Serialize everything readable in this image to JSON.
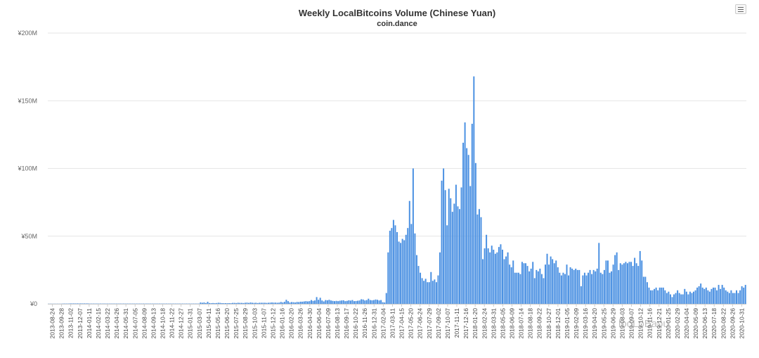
{
  "title": "Weekly LocalBitcoins Volume (Chinese Yuan)",
  "subtitle": "coin.dance",
  "watermark": "looLoBaou",
  "colors": {
    "bar": "#4a90e2",
    "grid": "#e6e6e6",
    "axis": "#cccccc"
  },
  "menu": {
    "icon": "hamburger-icon"
  },
  "chart_data": {
    "type": "bar",
    "xlabel": "",
    "ylabel": "",
    "ylim": [
      0,
      200
    ],
    "y_unit": "M CNY",
    "y_ticks": [
      0,
      50,
      100,
      150,
      200
    ],
    "y_tick_labels": [
      "¥0",
      "¥50M",
      "¥100M",
      "¥150M",
      "¥200M"
    ],
    "grid": true,
    "x_tick_labels": [
      "2013-08-24",
      "2013-09-28",
      "2013-11-02",
      "2013-12-07",
      "2014-01-11",
      "2014-02-15",
      "2014-03-22",
      "2014-04-26",
      "2014-05-31",
      "2014-07-05",
      "2014-08-09",
      "2014-09-13",
      "2014-10-18",
      "2014-11-22",
      "2014-12-27",
      "2015-01-31",
      "2015-03-07",
      "2015-04-11",
      "2015-05-16",
      "2015-06-20",
      "2015-07-25",
      "2015-08-29",
      "2015-10-03",
      "2015-11-07",
      "2015-12-12",
      "2016-01-16",
      "2016-02-20",
      "2016-03-26",
      "2016-04-30",
      "2016-06-04",
      "2016-07-09",
      "2016-08-13",
      "2016-09-17",
      "2016-10-22",
      "2016-11-26",
      "2016-12-31",
      "2017-02-04",
      "2017-03-11",
      "2017-04-15",
      "2017-05-20",
      "2017-06-24",
      "2017-07-29",
      "2017-09-02",
      "2017-10-07",
      "2017-11-11",
      "2017-12-16",
      "2018-01-20",
      "2018-02-24",
      "2018-03-31",
      "2018-05-05",
      "2018-06-09",
      "2018-07-14",
      "2018-08-18",
      "2018-09-22",
      "2018-10-27",
      "2018-12-01",
      "2019-01-05",
      "2019-02-09",
      "2019-03-16",
      "2019-04-20",
      "2019-05-25",
      "2019-06-29",
      "2019-08-03",
      "2019-09-07",
      "2019-10-12",
      "2019-11-16",
      "2019-12-21",
      "2020-01-25",
      "2020-02-29",
      "2020-04-04",
      "2020-05-09",
      "2020-06-13",
      "2020-07-18",
      "2020-08-22",
      "2020-09-26",
      "2020-10-31"
    ],
    "series": [
      {
        "values": [
          0.1,
          0.1,
          0.1,
          0.1,
          0.1,
          0.1,
          0.1,
          0.1,
          0.2,
          0.2,
          0.2,
          0.2,
          0.3,
          0.3,
          0.3,
          0.3,
          0.3,
          0.3,
          0.3,
          0.3,
          0.3,
          0.3,
          0.3,
          0.2,
          0.2,
          0.2,
          0.2,
          0.2,
          0.2,
          0.2,
          0.2,
          0.2,
          0.2,
          0.2,
          0.2,
          0.2,
          0.2,
          0.2,
          0.2,
          0.2,
          0.2,
          0.2,
          0.2,
          0.2,
          0.2,
          0.2,
          0.2,
          0.2,
          0.2,
          0.2,
          0.2,
          0.2,
          0.2,
          0.2,
          0.2,
          0.2,
          0.2,
          0.2,
          0.2,
          0.2,
          0.2,
          0.2,
          0.2,
          0.2,
          0.2,
          0.2,
          0.2,
          0.2,
          0.2,
          0.2,
          0.2,
          0.2,
          0.2,
          0.2,
          0.2,
          0.2,
          0.2,
          0.2,
          0.2,
          0.2,
          0.2,
          0.2,
          0.2,
          0.2,
          0.2,
          1.0,
          0.8,
          1.0,
          0.6,
          1.5,
          0.6,
          0.5,
          0.6,
          0.5,
          0.6,
          0.8,
          0.7,
          0.5,
          0.5,
          0.5,
          0.5,
          0.5,
          0.5,
          0.7,
          0.7,
          0.6,
          0.8,
          0.7,
          0.7,
          0.6,
          0.8,
          0.9,
          0.7,
          1.0,
          0.8,
          0.7,
          0.8,
          0.6,
          0.8,
          0.8,
          0.8,
          0.8,
          0.7,
          0.8,
          0.9,
          1.0,
          0.9,
          0.9,
          0.8,
          0.9,
          1.4,
          1.0,
          1.5,
          3.0,
          2.0,
          1.0,
          1.3,
          1.2,
          1.0,
          1.4,
          1.3,
          1.6,
          1.6,
          1.8,
          2.0,
          1.8,
          2.0,
          2.8,
          2.2,
          2.5,
          5.0,
          3.0,
          4.5,
          2.5,
          1.8,
          2.8,
          2.6,
          3.0,
          2.5,
          2.2,
          2.0,
          2.2,
          2.0,
          2.3,
          2.5,
          2.6,
          2.0,
          2.2,
          2.6,
          2.4,
          2.8,
          2.0,
          2.1,
          2.3,
          2.5,
          3.4,
          3.2,
          2.5,
          2.8,
          3.8,
          2.8,
          2.6,
          2.8,
          3.2,
          3.0,
          2.5,
          2.8,
          1.2,
          1.0,
          8.0,
          38.0,
          54.0,
          56.0,
          62.0,
          58.0,
          53.0,
          46.0,
          45.0,
          48.0,
          47.0,
          51.0,
          56.0,
          76.0,
          59.0,
          100.0,
          52.0,
          36.0,
          28.0,
          23.0,
          19.0,
          17.0,
          18.5,
          16.0,
          16.0,
          23.5,
          17.0,
          18.0,
          16.0,
          21.0,
          38.0,
          91.0,
          100.0,
          84.0,
          58.0,
          85.0,
          78.0,
          68.0,
          74.0,
          88.0,
          72.0,
          70.0,
          86.0,
          119.0,
          134.0,
          115.0,
          110.0,
          87.0,
          133.0,
          168.0,
          104.0,
          66.0,
          70.0,
          64.0,
          33.0,
          41.0,
          51.0,
          41.0,
          38.0,
          43.0,
          40.0,
          37.0,
          38.0,
          42.0,
          44.0,
          40.0,
          33.0,
          35.0,
          38.0,
          29.0,
          27.0,
          32.0,
          23.0,
          23.0,
          23.0,
          22.0,
          31.0,
          30.0,
          30.0,
          28.0,
          24.0,
          26.0,
          31.0,
          19.0,
          25.0,
          24.0,
          26.0,
          22.0,
          19.0,
          29.0,
          37.0,
          29.0,
          35.0,
          33.0,
          30.0,
          32.0,
          27.0,
          23.0,
          21.0,
          23.0,
          22.0,
          29.0,
          21.0,
          27.0,
          26.0,
          25.0,
          26.0,
          25.0,
          25.0,
          13.0,
          21.0,
          23.0,
          21.0,
          23.0,
          25.0,
          22.0,
          25.0,
          24.0,
          26.0,
          45.0,
          23.0,
          22.0,
          25.0,
          32.0,
          32.0,
          23.0,
          24.0,
          29.0,
          36.0,
          38.0,
          25.0,
          30.0,
          29.0,
          30.0,
          31.0,
          30.0,
          31.0,
          31.0,
          28.0,
          34.0,
          30.0,
          28.0,
          39.0,
          32.0,
          20.0,
          20.0,
          16.0,
          12.0,
          10.0,
          10.0,
          11.0,
          12.0,
          10.0,
          12.0,
          12.0,
          12.0,
          10.0,
          8.0,
          9.0,
          7.0,
          5.0,
          7.0,
          8.0,
          10.0,
          8.0,
          7.0,
          7.0,
          11.0,
          9.0,
          7.0,
          9.0,
          8.0,
          9.0,
          10.0,
          12.0,
          13.0,
          15.0,
          12.0,
          11.0,
          12.0,
          10.0,
          9.0,
          11.0,
          12.0,
          12.0,
          10.0,
          14.0,
          11.0,
          14.0,
          12.0,
          10.0,
          9.0,
          8.0,
          10.0,
          8.0,
          8.0,
          10.0,
          8.0,
          10.0,
          13.0,
          12.0,
          14.0
        ]
      }
    ]
  }
}
